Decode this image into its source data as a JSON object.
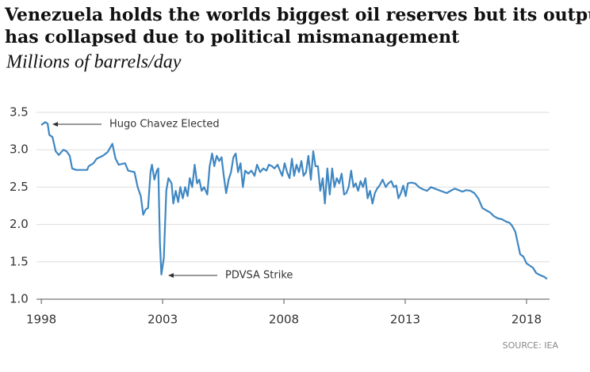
{
  "chart_data": {
    "type": "line",
    "title": "Venezuela holds the worlds biggest oil reserves but its output has collapsed due to political mismanagement",
    "subtitle": "Millions of barrels/day",
    "source": "SOURCE: IEA",
    "annotations": [
      "Hugo Chavez Elected",
      "PDVSA Strike"
    ],
    "color": "#3f87c2",
    "grid": true,
    "xlim": [
      1997.8,
      2018.95
    ],
    "xticks": [
      1998,
      2003,
      2008,
      2013,
      2018
    ],
    "ylim": [
      1.0,
      3.5
    ],
    "yticks": [
      {
        "value": 1.0,
        "label": "1.0"
      },
      1.5,
      {
        "value": 2.0,
        "label": "2.0"
      },
      2.5,
      {
        "value": 3.0,
        "label": "3.0"
      },
      3.5
    ],
    "x": [
      1998.0,
      1998.16,
      1998.26,
      1998.33,
      1998.46,
      1998.59,
      1998.72,
      1998.91,
      1999.04,
      1999.17,
      1999.27,
      1999.43,
      1999.89,
      1999.95,
      2000.15,
      2000.28,
      2000.54,
      2000.74,
      2000.93,
      2001.06,
      2001.19,
      2001.45,
      2001.58,
      2001.84,
      2001.97,
      2002.1,
      2002.2,
      2002.3,
      2002.4,
      2002.5,
      2002.56,
      2002.66,
      2002.76,
      2002.82,
      2002.89,
      2002.95,
      2003.05,
      2003.15,
      2003.24,
      2003.37,
      2003.44,
      2003.54,
      2003.64,
      2003.73,
      2003.83,
      2003.93,
      2004.03,
      2004.12,
      2004.22,
      2004.32,
      2004.42,
      2004.51,
      2004.61,
      2004.71,
      2004.84,
      2004.94,
      2005.04,
      2005.13,
      2005.23,
      2005.33,
      2005.43,
      2005.52,
      2005.62,
      2005.72,
      2005.82,
      2005.92,
      2006.01,
      2006.11,
      2006.21,
      2006.31,
      2006.4,
      2006.53,
      2006.66,
      2006.79,
      2006.89,
      2007.02,
      2007.15,
      2007.28,
      2007.38,
      2007.51,
      2007.61,
      2007.74,
      2007.84,
      2007.93,
      2008.03,
      2008.13,
      2008.23,
      2008.33,
      2008.42,
      2008.52,
      2008.62,
      2008.72,
      2008.81,
      2008.91,
      2009.01,
      2009.11,
      2009.21,
      2009.3,
      2009.4,
      2009.5,
      2009.6,
      2009.69,
      2009.79,
      2009.89,
      2009.99,
      2010.08,
      2010.18,
      2010.28,
      2010.38,
      2010.48,
      2010.57,
      2010.67,
      2010.77,
      2010.87,
      2010.96,
      2011.06,
      2011.16,
      2011.26,
      2011.36,
      2011.45,
      2011.55,
      2011.65,
      2011.75,
      2011.84,
      2011.94,
      2012.07,
      2012.2,
      2012.3,
      2012.43,
      2012.53,
      2012.63,
      2012.72,
      2012.82,
      2012.92,
      2013.02,
      2013.11,
      2013.24,
      2013.41,
      2013.57,
      2013.73,
      2013.9,
      2014.06,
      2014.22,
      2014.38,
      2014.55,
      2014.71,
      2014.87,
      2015.04,
      2015.2,
      2015.36,
      2015.52,
      2015.69,
      2015.85,
      2016.01,
      2016.18,
      2016.34,
      2016.5,
      2016.66,
      2016.83,
      2016.99,
      2017.15,
      2017.31,
      2017.41,
      2017.54,
      2017.64,
      2017.74,
      2017.87,
      2018.0,
      2018.13,
      2018.27,
      2018.4,
      2018.57,
      2018.73,
      2018.85
    ],
    "values": [
      3.33,
      3.37,
      3.35,
      3.2,
      3.17,
      2.98,
      2.93,
      3.0,
      2.98,
      2.92,
      2.75,
      2.73,
      2.73,
      2.78,
      2.82,
      2.88,
      2.92,
      2.97,
      3.08,
      2.88,
      2.8,
      2.82,
      2.72,
      2.7,
      2.5,
      2.38,
      2.13,
      2.2,
      2.22,
      2.7,
      2.8,
      2.6,
      2.72,
      2.75,
      1.75,
      1.33,
      1.55,
      2.45,
      2.62,
      2.55,
      2.28,
      2.45,
      2.3,
      2.5,
      2.35,
      2.5,
      2.38,
      2.62,
      2.5,
      2.8,
      2.55,
      2.6,
      2.45,
      2.5,
      2.4,
      2.78,
      2.95,
      2.78,
      2.92,
      2.85,
      2.9,
      2.65,
      2.42,
      2.6,
      2.7,
      2.9,
      2.95,
      2.7,
      2.82,
      2.5,
      2.72,
      2.68,
      2.72,
      2.65,
      2.8,
      2.7,
      2.75,
      2.72,
      2.8,
      2.78,
      2.75,
      2.8,
      2.72,
      2.65,
      2.82,
      2.7,
      2.62,
      2.88,
      2.65,
      2.8,
      2.7,
      2.85,
      2.65,
      2.7,
      2.92,
      2.6,
      2.98,
      2.78,
      2.78,
      2.45,
      2.62,
      2.28,
      2.75,
      2.4,
      2.75,
      2.5,
      2.62,
      2.55,
      2.68,
      2.4,
      2.42,
      2.5,
      2.72,
      2.5,
      2.55,
      2.45,
      2.58,
      2.5,
      2.62,
      2.35,
      2.45,
      2.28,
      2.42,
      2.48,
      2.52,
      2.6,
      2.5,
      2.55,
      2.58,
      2.5,
      2.52,
      2.35,
      2.42,
      2.52,
      2.38,
      2.55,
      2.56,
      2.55,
      2.5,
      2.47,
      2.45,
      2.5,
      2.48,
      2.46,
      2.44,
      2.42,
      2.45,
      2.48,
      2.46,
      2.44,
      2.46,
      2.45,
      2.42,
      2.35,
      2.22,
      2.19,
      2.16,
      2.11,
      2.08,
      2.07,
      2.04,
      2.02,
      1.98,
      1.9,
      1.75,
      1.6,
      1.57,
      1.48,
      1.45,
      1.42,
      1.35,
      1.32,
      1.3,
      1.27
    ]
  }
}
